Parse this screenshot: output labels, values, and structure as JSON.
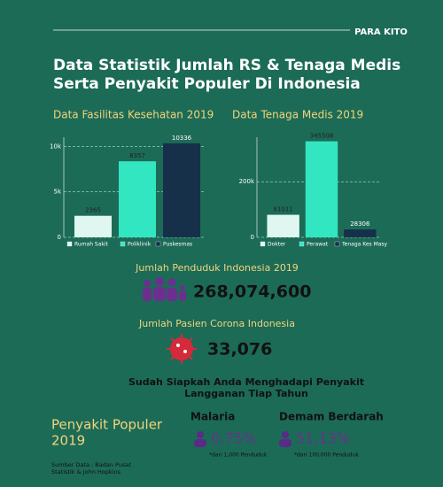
{
  "brand": "PARA KITO",
  "title": [
    "Data Statistik Jumlah RS & Tenaga Medis",
    "Serta Penyakit Populer Di Indonesia"
  ],
  "chart_data": [
    {
      "type": "bar",
      "title": "Data Fasilitas Kesehatan 2019",
      "categories": [
        "Rumah Sakit",
        "Poliklinik",
        "Puskesmas"
      ],
      "values": [
        2365,
        8357,
        10336
      ],
      "colors": [
        "#dff7f0",
        "#31e6c1",
        "#17304a"
      ],
      "ylim": [
        0,
        11000
      ],
      "yticks": [
        0,
        {
          "value": 5000,
          "label": "5k"
        },
        {
          "value": 10000,
          "label": "10k"
        }
      ],
      "grid": true
    },
    {
      "type": "bar",
      "title": "Data Tenaga Medis 2019",
      "categories": [
        "Dokter",
        "Perawat",
        "Tenaga Kes Masy"
      ],
      "values": [
        81011,
        345508,
        28306
      ],
      "colors": [
        "#dff7f0",
        "#31e6c1",
        "#17304a"
      ],
      "ylim": [
        0,
        360000
      ],
      "yticks": [
        0,
        {
          "value": 200000,
          "label": "200k"
        }
      ],
      "grid": true
    }
  ],
  "population": {
    "label": "Jumlah Penduduk Indonesia 2019",
    "value": "268,074,600"
  },
  "corona": {
    "label": "Jumlah Pasien Corona Indonesia",
    "value": "33,076"
  },
  "question": [
    "Sudah Siapkah Anda Menghadapi Penyakit",
    "Langganan Tiap Tahun"
  ],
  "diseases": {
    "title": [
      "Penyakit Populer",
      "2019"
    ],
    "items": [
      {
        "name": "Malaria",
        "value": "0,75%",
        "note": "*dari 1,000 Penduduk"
      },
      {
        "name": "Demam Berdarah",
        "value": "51,13%",
        "note": "*dari 100,000 Penduduk"
      }
    ]
  },
  "source": [
    "Sumber Data : Badan Pusat",
    "Statistik & John Hopkins"
  ]
}
